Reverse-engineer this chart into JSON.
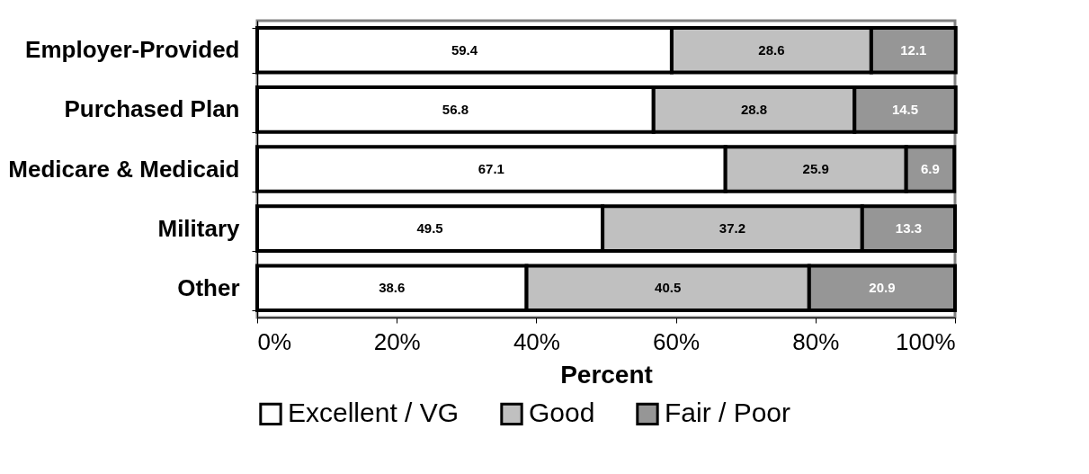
{
  "chart_data": {
    "type": "bar",
    "orientation": "horizontal",
    "stacked": true,
    "data_labels": true,
    "xlabel": "Percent",
    "legend": "bottom",
    "grid": false,
    "categories": [
      "Employer-Provided",
      "Purchased Plan",
      "Medicare & Medicaid",
      "Military",
      "Other"
    ],
    "xlim": [
      0,
      100
    ],
    "xticks": [
      {
        "value": 0,
        "label": "0%"
      },
      {
        "value": 20,
        "label": "20%"
      },
      {
        "value": 40,
        "label": "40%"
      },
      {
        "value": 60,
        "label": "60%"
      },
      {
        "value": 80,
        "label": "80%"
      },
      {
        "value": 100,
        "label": "100%"
      }
    ],
    "series": [
      {
        "name": "Excellent / VG",
        "color": "#ffffff",
        "values": [
          59.4,
          56.8,
          67.1,
          49.5,
          38.6
        ]
      },
      {
        "name": "Good",
        "color": "#c0c0c0",
        "values": [
          28.6,
          28.8,
          25.9,
          37.2,
          40.5
        ]
      },
      {
        "name": "Fair / Poor",
        "color": "#969696",
        "values": [
          12.1,
          14.5,
          6.9,
          13.3,
          20.9
        ]
      }
    ]
  }
}
